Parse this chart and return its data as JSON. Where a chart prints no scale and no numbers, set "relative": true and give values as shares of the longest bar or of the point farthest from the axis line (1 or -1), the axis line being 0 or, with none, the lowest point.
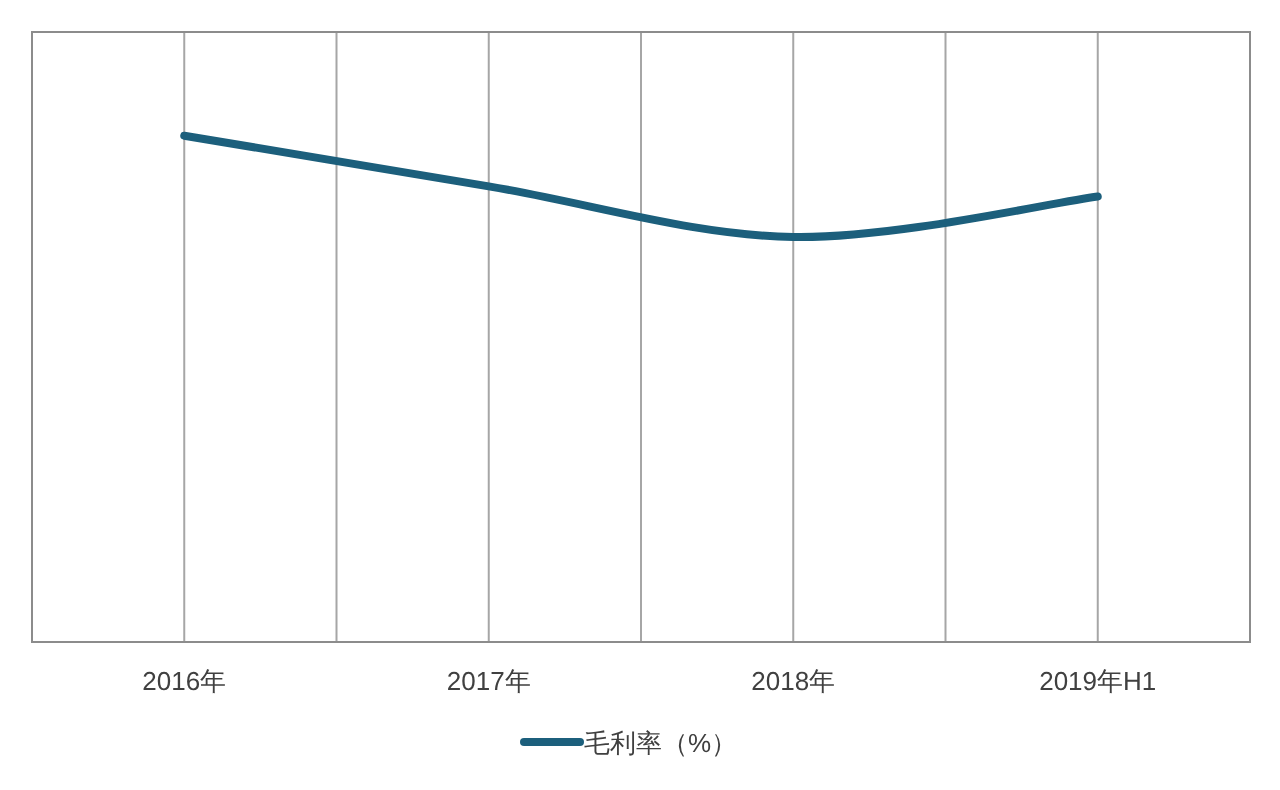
{
  "chart_data": {
    "type": "line",
    "relative": true,
    "categories": [
      "2016年",
      "2017年",
      "2018年",
      "2019年H1"
    ],
    "series": [
      {
        "name": "毛利率（%）",
        "color": "#1c5f7c",
        "values": [
          1,
          0.9,
          0.8,
          0.88
        ]
      }
    ],
    "grid": "x",
    "legend": "bottom",
    "marker": "none",
    "line_style": "solid"
  }
}
